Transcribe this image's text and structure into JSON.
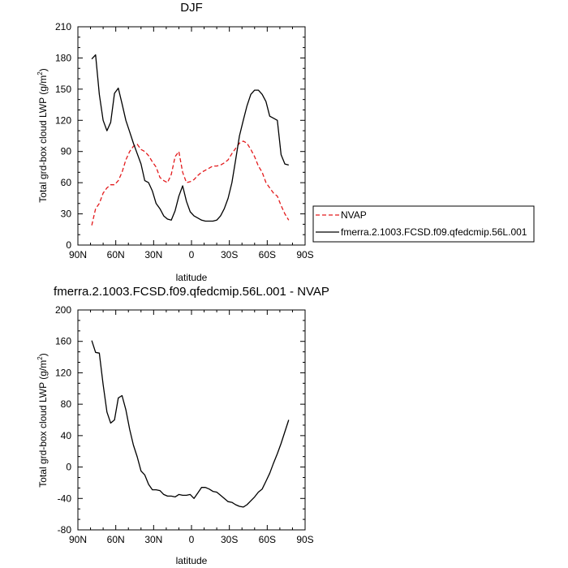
{
  "chart_data": [
    {
      "type": "line",
      "title": "DJF",
      "xlabel": "latitude",
      "ylabel": "Total grd-box cloud LWP (g/m",
      "ylabel_sup": "2",
      "ylabel_close": ")",
      "xlim": [
        90,
        -90
      ],
      "ylim": [
        0,
        210
      ],
      "x_ticks": [
        90,
        60,
        30,
        0,
        -30,
        -60,
        -90
      ],
      "x_tick_labels": [
        "90N",
        "60N",
        "30N",
        "0",
        "30S",
        "60S",
        "90S"
      ],
      "y_ticks": [
        0,
        30,
        60,
        90,
        120,
        150,
        180,
        210
      ],
      "y_tick_labels": [
        "0",
        "30",
        "60",
        "90",
        "120",
        "150",
        "180",
        "210"
      ],
      "legend": {
        "position": "outside-right"
      },
      "series": [
        {
          "name": "NVAP",
          "color": "#e31a1c",
          "dash": "dashed",
          "x": [
            79,
            76,
            73,
            70,
            67,
            64,
            61,
            58,
            55,
            52,
            49,
            46,
            43,
            40,
            37,
            34,
            31,
            28,
            25,
            22,
            19,
            16,
            13,
            10,
            7,
            4,
            1,
            -2,
            -5,
            -8,
            -11,
            -14,
            -17,
            -20,
            -23,
            -26,
            -29,
            -32,
            -35,
            -38,
            -41,
            -44,
            -47,
            -50,
            -53,
            -56,
            -59,
            -62,
            -65,
            -68,
            -71,
            -74,
            -77
          ],
          "y": [
            19,
            35,
            40,
            50,
            55,
            58,
            58,
            62,
            70,
            82,
            90,
            95,
            97,
            92,
            90,
            86,
            80,
            75,
            65,
            62,
            60,
            68,
            85,
            90,
            70,
            60,
            61,
            63,
            67,
            70,
            72,
            74,
            76,
            76,
            77,
            79,
            82,
            88,
            93,
            98,
            100,
            98,
            92,
            85,
            76,
            70,
            60,
            55,
            50,
            47,
            38,
            30,
            24
          ]
        },
        {
          "name": "fmerra.2.1003.FCSD.f09.qfedcmip.56L.001",
          "color": "#000000",
          "dash": "solid",
          "x": [
            79,
            76,
            73,
            70,
            67,
            64,
            61,
            58,
            55,
            52,
            49,
            46,
            43,
            40,
            37,
            34,
            31,
            28,
            25,
            22,
            19,
            16,
            13,
            10,
            7,
            4,
            1,
            -2,
            -5,
            -8,
            -11,
            -14,
            -17,
            -20,
            -23,
            -26,
            -29,
            -32,
            -35,
            -38,
            -41,
            -44,
            -47,
            -50,
            -53,
            -56,
            -59,
            -62,
            -65,
            -68,
            -71,
            -74,
            -77
          ],
          "y": [
            179,
            183,
            145,
            120,
            110,
            118,
            146,
            151,
            136,
            120,
            109,
            98,
            88,
            78,
            62,
            60,
            52,
            40,
            35,
            28,
            25,
            24,
            33,
            47,
            57,
            42,
            32,
            28,
            26,
            24,
            23,
            23,
            23,
            24,
            28,
            35,
            45,
            60,
            82,
            105,
            120,
            134,
            145,
            149,
            149,
            145,
            138,
            124,
            122,
            120,
            87,
            78,
            77
          ]
        }
      ]
    },
    {
      "type": "line",
      "title": "fmerra.2.1003.FCSD.f09.qfedcmip.56L.001 - NVAP",
      "xlabel": "latitude",
      "ylabel": "Total grd-box cloud LWP (g/m",
      "ylabel_sup": "2",
      "ylabel_close": ")",
      "xlim": [
        90,
        -90
      ],
      "ylim": [
        -80,
        200
      ],
      "x_ticks": [
        90,
        60,
        30,
        0,
        -30,
        -60,
        -90
      ],
      "x_tick_labels": [
        "90N",
        "60N",
        "30N",
        "0",
        "30S",
        "60S",
        "90S"
      ],
      "y_ticks": [
        -80,
        -40,
        0,
        40,
        80,
        120,
        160,
        200
      ],
      "y_tick_labels": [
        "-80",
        "-40",
        "0",
        "40",
        "80",
        "120",
        "160",
        "200"
      ],
      "series": [
        {
          "color": "#000000",
          "dash": "solid",
          "x": [
            79,
            76,
            73,
            70,
            67,
            64,
            61,
            58,
            55,
            52,
            49,
            46,
            43,
            40,
            37,
            34,
            31,
            28,
            25,
            22,
            19,
            16,
            13,
            10,
            7,
            4,
            1,
            -2,
            -5,
            -8,
            -11,
            -14,
            -17,
            -20,
            -23,
            -26,
            -29,
            -32,
            -35,
            -38,
            -41,
            -44,
            -47,
            -50,
            -53,
            -56,
            -59,
            -62,
            -65,
            -68,
            -71,
            -74,
            -77
          ],
          "y": [
            161,
            146,
            145,
            105,
            70,
            56,
            60,
            88,
            91,
            73,
            48,
            28,
            13,
            -5,
            -10,
            -22,
            -29,
            -29,
            -30,
            -35,
            -37,
            -37,
            -38,
            -35,
            -36,
            -36,
            -35,
            -40,
            -33,
            -26,
            -26,
            -28,
            -31,
            -32,
            -36,
            -40,
            -44,
            -45,
            -48,
            -50,
            -51,
            -48,
            -43,
            -38,
            -32,
            -28,
            -18,
            -8,
            5,
            17,
            30,
            45,
            60
          ]
        }
      ]
    }
  ]
}
